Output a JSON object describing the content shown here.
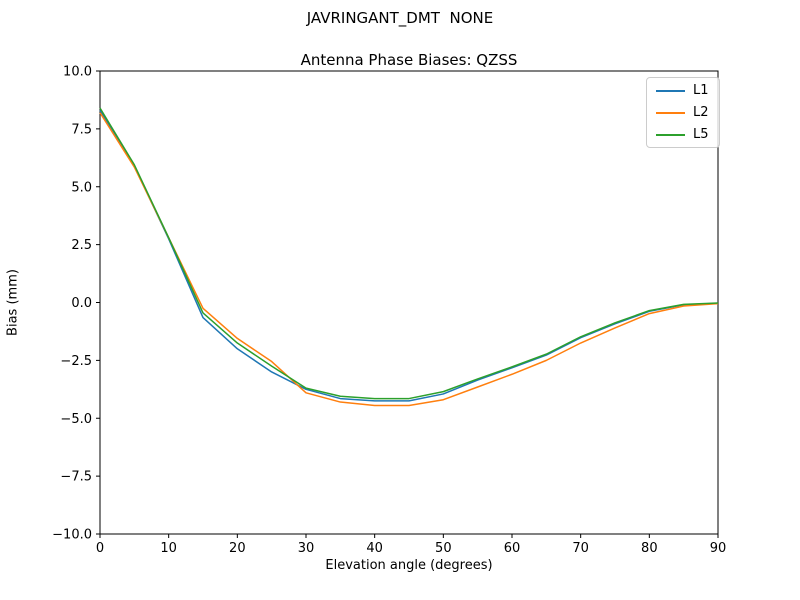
{
  "figure": {
    "suptitle": "JAVRINGANT_DMT  NONE",
    "axes_title": "Antenna Phase Biases: QZSS"
  },
  "chart_data": {
    "type": "line",
    "title": "Antenna Phase Biases: QZSS",
    "suptitle": "JAVRINGANT_DMT  NONE",
    "xlabel": "Elevation angle (degrees)",
    "ylabel": "Bias (mm)",
    "xlim": [
      0,
      90
    ],
    "ylim": [
      -10,
      10
    ],
    "grid": false,
    "legend_position": "upper right",
    "xticks": [
      0,
      10,
      20,
      30,
      40,
      50,
      60,
      70,
      80,
      90
    ],
    "xtick_labels": [
      "0",
      "10",
      "20",
      "30",
      "40",
      "50",
      "60",
      "70",
      "80",
      "90"
    ],
    "yticks": [
      10.0,
      7.5,
      5.0,
      2.5,
      0.0,
      -2.5,
      -5.0,
      -7.5,
      -10.0
    ],
    "ytick_labels": [
      "10.0",
      "7.5",
      "5.0",
      "2.5",
      "0.0",
      "−2.5",
      "−5.0",
      "−7.5",
      "−10.0"
    ],
    "x": [
      0,
      5,
      10,
      15,
      20,
      25,
      30,
      35,
      40,
      45,
      50,
      55,
      60,
      65,
      70,
      75,
      80,
      85,
      90
    ],
    "series": [
      {
        "name": "L1",
        "color": "#1f77b4",
        "values": [
          8.3,
          5.9,
          2.75,
          -0.65,
          -2.0,
          -3.0,
          -3.75,
          -4.15,
          -4.25,
          -4.25,
          -3.95,
          -3.35,
          -2.82,
          -2.27,
          -1.52,
          -0.92,
          -0.38,
          -0.1,
          -0.03
        ]
      },
      {
        "name": "L2",
        "color": "#ff7f0e",
        "values": [
          8.2,
          5.85,
          2.8,
          -0.25,
          -1.55,
          -2.55,
          -3.9,
          -4.3,
          -4.45,
          -4.45,
          -4.2,
          -3.65,
          -3.1,
          -2.5,
          -1.75,
          -1.1,
          -0.48,
          -0.15,
          -0.05
        ]
      },
      {
        "name": "L5",
        "color": "#2ca02c",
        "values": [
          8.4,
          5.95,
          2.8,
          -0.45,
          -1.75,
          -2.75,
          -3.7,
          -4.05,
          -4.15,
          -4.15,
          -3.85,
          -3.3,
          -2.78,
          -2.23,
          -1.48,
          -0.88,
          -0.35,
          -0.08,
          -0.02
        ]
      }
    ]
  }
}
